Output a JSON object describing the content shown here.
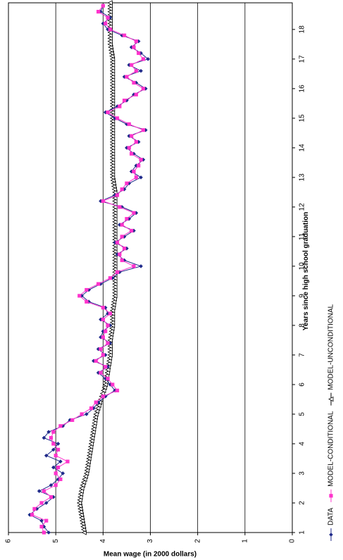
{
  "chart_data": {
    "type": "line",
    "orientation": "rotated-90-clockwise",
    "xlabel": "Years since high school graduation",
    "ylabel": "Mean wage (in 2000 dollars)",
    "xlim": [
      1,
      18.9
    ],
    "ylim": [
      0,
      6
    ],
    "x_ticks": [
      "1",
      "2",
      "3",
      "4",
      "5",
      "6",
      "7",
      "8",
      "9",
      "10",
      "11",
      "12",
      "13",
      "14",
      "15",
      "16",
      "17",
      "18"
    ],
    "y_ticks": [
      "0",
      "1",
      "2",
      "3",
      "4",
      "5",
      "6"
    ],
    "grid": "horizontal gridlines at each y tick",
    "legend_position": "bottom",
    "series": [
      {
        "name": "DATA",
        "color": "#1f2a8a",
        "marker": "diamond",
        "points": [
          [
            1.0,
            5.15
          ],
          [
            1.2,
            5.25
          ],
          [
            1.4,
            5.3
          ],
          [
            1.6,
            5.55
          ],
          [
            1.8,
            5.4
          ],
          [
            2.0,
            5.2
          ],
          [
            2.2,
            5.05
          ],
          [
            2.4,
            5.35
          ],
          [
            2.6,
            5.1
          ],
          [
            2.8,
            4.95
          ],
          [
            3.0,
            4.85
          ],
          [
            3.2,
            5.05
          ],
          [
            3.4,
            4.9
          ],
          [
            3.6,
            5.2
          ],
          [
            3.8,
            5.05
          ],
          [
            4.0,
            4.95
          ],
          [
            4.2,
            5.25
          ],
          [
            4.4,
            5.15
          ],
          [
            4.6,
            4.85
          ],
          [
            4.8,
            4.7
          ],
          [
            5.0,
            4.35
          ],
          [
            5.2,
            4.2
          ],
          [
            5.4,
            4.1
          ],
          [
            5.6,
            3.95
          ],
          [
            5.8,
            3.75
          ],
          [
            6.0,
            3.85
          ],
          [
            6.2,
            3.95
          ],
          [
            6.4,
            4.1
          ],
          [
            6.6,
            3.9
          ],
          [
            6.8,
            4.2
          ],
          [
            7.0,
            3.95
          ],
          [
            7.2,
            4.1
          ],
          [
            7.4,
            3.85
          ],
          [
            7.6,
            4.05
          ],
          [
            7.8,
            4.0
          ],
          [
            8.0,
            3.85
          ],
          [
            8.2,
            4.05
          ],
          [
            8.4,
            3.9
          ],
          [
            8.6,
            3.95
          ],
          [
            8.8,
            4.3
          ],
          [
            9.0,
            4.45
          ],
          [
            9.2,
            4.3
          ],
          [
            9.4,
            4.05
          ],
          [
            9.6,
            3.8
          ],
          [
            9.8,
            3.65
          ],
          [
            10.0,
            3.2
          ],
          [
            10.2,
            3.55
          ],
          [
            10.4,
            3.7
          ],
          [
            10.6,
            3.5
          ],
          [
            10.8,
            3.75
          ],
          [
            11.0,
            3.55
          ],
          [
            11.2,
            3.35
          ],
          [
            11.4,
            3.65
          ],
          [
            11.6,
            3.45
          ],
          [
            11.8,
            3.3
          ],
          [
            12.0,
            3.6
          ],
          [
            12.2,
            4.05
          ],
          [
            12.4,
            3.75
          ],
          [
            12.6,
            3.55
          ],
          [
            12.8,
            3.45
          ],
          [
            13.0,
            3.2
          ],
          [
            13.2,
            3.4
          ],
          [
            13.4,
            3.3
          ],
          [
            13.6,
            3.15
          ],
          [
            13.8,
            3.35
          ],
          [
            14.0,
            3.5
          ],
          [
            14.2,
            3.25
          ],
          [
            14.4,
            3.45
          ],
          [
            14.6,
            3.1
          ],
          [
            14.8,
            3.5
          ],
          [
            15.0,
            3.75
          ],
          [
            15.2,
            3.95
          ],
          [
            15.4,
            3.7
          ],
          [
            15.6,
            3.5
          ],
          [
            15.8,
            3.35
          ],
          [
            16.0,
            3.1
          ],
          [
            16.2,
            3.3
          ],
          [
            16.4,
            3.55
          ],
          [
            16.6,
            3.2
          ],
          [
            16.8,
            3.45
          ],
          [
            17.0,
            3.05
          ],
          [
            17.2,
            3.2
          ],
          [
            17.4,
            3.4
          ],
          [
            17.6,
            3.25
          ],
          [
            17.8,
            3.6
          ],
          [
            18.0,
            3.9
          ],
          [
            18.2,
            4.0
          ],
          [
            18.4,
            3.85
          ],
          [
            18.6,
            4.05
          ],
          [
            18.8,
            4.0
          ]
        ]
      },
      {
        "name": "MODEL-CONDITIONAL",
        "color": "#ff33cc",
        "marker": "square",
        "points": [
          [
            1.0,
            5.25
          ],
          [
            1.2,
            5.3
          ],
          [
            1.4,
            5.2
          ],
          [
            1.6,
            5.5
          ],
          [
            1.8,
            5.45
          ],
          [
            2.0,
            5.3
          ],
          [
            2.2,
            5.1
          ],
          [
            2.4,
            5.25
          ],
          [
            2.6,
            5.0
          ],
          [
            2.8,
            4.9
          ],
          [
            3.0,
            5.0
          ],
          [
            3.2,
            4.95
          ],
          [
            3.4,
            4.75
          ],
          [
            3.6,
            5.0
          ],
          [
            3.8,
            4.95
          ],
          [
            4.0,
            5.05
          ],
          [
            4.2,
            5.1
          ],
          [
            4.4,
            5.05
          ],
          [
            4.6,
            4.9
          ],
          [
            4.8,
            4.65
          ],
          [
            5.0,
            4.45
          ],
          [
            5.2,
            4.25
          ],
          [
            5.4,
            4.15
          ],
          [
            5.6,
            4.0
          ],
          [
            5.8,
            3.7
          ],
          [
            6.0,
            3.8
          ],
          [
            6.2,
            3.9
          ],
          [
            6.4,
            4.05
          ],
          [
            6.6,
            3.95
          ],
          [
            6.8,
            4.15
          ],
          [
            7.0,
            4.0
          ],
          [
            7.2,
            4.05
          ],
          [
            7.4,
            3.9
          ],
          [
            7.6,
            4.0
          ],
          [
            7.8,
            3.95
          ],
          [
            8.0,
            3.9
          ],
          [
            8.2,
            4.0
          ],
          [
            8.4,
            3.85
          ],
          [
            8.6,
            4.0
          ],
          [
            8.8,
            4.35
          ],
          [
            9.0,
            4.5
          ],
          [
            9.2,
            4.35
          ],
          [
            9.4,
            4.1
          ],
          [
            9.6,
            3.85
          ],
          [
            9.8,
            3.7
          ],
          [
            10.0,
            3.35
          ],
          [
            10.2,
            3.6
          ],
          [
            10.4,
            3.65
          ],
          [
            10.6,
            3.55
          ],
          [
            10.8,
            3.7
          ],
          [
            11.0,
            3.6
          ],
          [
            11.2,
            3.4
          ],
          [
            11.4,
            3.6
          ],
          [
            11.6,
            3.5
          ],
          [
            11.8,
            3.35
          ],
          [
            12.0,
            3.65
          ],
          [
            12.2,
            4.0
          ],
          [
            12.4,
            3.7
          ],
          [
            12.6,
            3.6
          ],
          [
            12.8,
            3.5
          ],
          [
            13.0,
            3.3
          ],
          [
            13.2,
            3.35
          ],
          [
            13.4,
            3.25
          ],
          [
            13.6,
            3.2
          ],
          [
            13.8,
            3.4
          ],
          [
            14.0,
            3.45
          ],
          [
            14.2,
            3.3
          ],
          [
            14.4,
            3.4
          ],
          [
            14.6,
            3.15
          ],
          [
            14.8,
            3.45
          ],
          [
            15.0,
            3.7
          ],
          [
            15.2,
            3.9
          ],
          [
            15.4,
            3.65
          ],
          [
            15.6,
            3.55
          ],
          [
            15.8,
            3.3
          ],
          [
            16.0,
            3.15
          ],
          [
            16.2,
            3.35
          ],
          [
            16.4,
            3.5
          ],
          [
            16.6,
            3.3
          ],
          [
            16.8,
            3.4
          ],
          [
            17.0,
            3.15
          ],
          [
            17.2,
            3.25
          ],
          [
            17.4,
            3.35
          ],
          [
            17.6,
            3.3
          ],
          [
            17.8,
            3.55
          ],
          [
            18.0,
            3.85
          ],
          [
            18.2,
            3.95
          ],
          [
            18.4,
            3.9
          ],
          [
            18.6,
            4.1
          ],
          [
            18.8,
            4.0
          ]
        ]
      },
      {
        "name": "MODEL-UNCONDITIONAL",
        "color": "#000000",
        "marker": "open-triangle",
        "points": [
          [
            1.0,
            4.4
          ],
          [
            1.5,
            4.45
          ],
          [
            2.0,
            4.5
          ],
          [
            2.5,
            4.45
          ],
          [
            3.0,
            4.35
          ],
          [
            3.5,
            4.3
          ],
          [
            4.0,
            4.25
          ],
          [
            4.5,
            4.2
          ],
          [
            5.0,
            4.15
          ],
          [
            5.5,
            4.05
          ],
          [
            6.0,
            3.95
          ],
          [
            6.5,
            3.9
          ],
          [
            7.0,
            3.85
          ],
          [
            7.5,
            3.85
          ],
          [
            8.0,
            3.8
          ],
          [
            8.5,
            3.8
          ],
          [
            9.0,
            3.75
          ],
          [
            9.5,
            3.75
          ],
          [
            10.0,
            3.75
          ],
          [
            10.5,
            3.75
          ],
          [
            11.0,
            3.75
          ],
          [
            11.5,
            3.75
          ],
          [
            12.0,
            3.75
          ],
          [
            12.5,
            3.75
          ],
          [
            13.0,
            3.8
          ],
          [
            13.5,
            3.8
          ],
          [
            14.0,
            3.8
          ],
          [
            14.5,
            3.8
          ],
          [
            15.0,
            3.8
          ],
          [
            15.5,
            3.8
          ],
          [
            16.0,
            3.8
          ],
          [
            16.5,
            3.8
          ],
          [
            17.0,
            3.8
          ],
          [
            17.5,
            3.85
          ],
          [
            18.0,
            3.85
          ],
          [
            18.5,
            3.85
          ],
          [
            18.9,
            3.85
          ]
        ]
      }
    ]
  }
}
